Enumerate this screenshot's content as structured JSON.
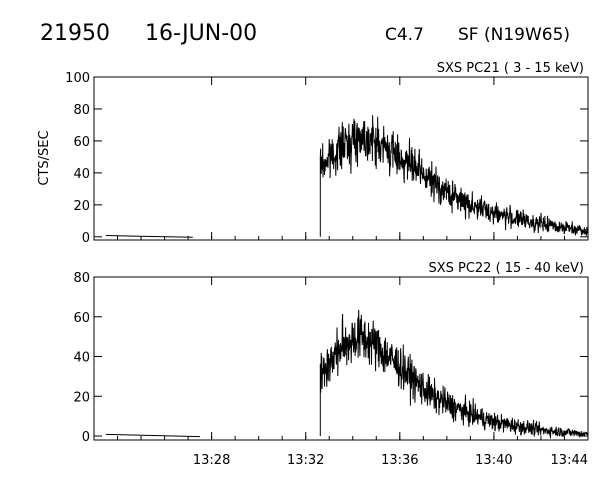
{
  "header": {
    "event_id": "21950",
    "date": "16-JUN-00",
    "goes_class": "C4.7",
    "flare": "SF (N19W65)"
  },
  "colors": {
    "trace": "#000000",
    "axes": "#000000",
    "background": "#ffffff"
  },
  "chart_data": [
    {
      "type": "line",
      "title": "SXS PC21  (  3 - 15 keV)",
      "ylabel": "CTS/SEC",
      "xlabel": "",
      "xlim": [
        "13:23",
        "13:44"
      ],
      "ylim": [
        -2,
        100
      ],
      "yticks": [
        0,
        20,
        40,
        60,
        80,
        100
      ],
      "xticks": [
        "13:28",
        "13:32",
        "13:36",
        "13:40",
        "13:44"
      ],
      "grid": false,
      "series": [
        {
          "x": [
            "13:23.5",
            "13:25.0",
            "13:27.2",
            "13:32.60",
            "13:32.62",
            "13:32.8",
            "13:33.2",
            "13:33.6",
            "13:34.0",
            "13:34.4",
            "13:34.8",
            "13:35.3",
            "13:36.0",
            "13:36.7",
            "13:37.4",
            "13:38.2",
            "13:39.0",
            "13:40.0",
            "13:41.0",
            "13:42.0",
            "13:43.0",
            "13:44.0"
          ],
          "y": [
            0,
            0,
            0,
            0,
            45,
            46,
            52,
            57,
            61,
            63,
            61,
            56,
            50,
            42,
            34,
            26,
            20,
            15,
            11,
            8,
            6,
            4
          ]
        }
      ]
    },
    {
      "type": "line",
      "title": "SXS PC22  ( 15 - 40 keV)",
      "ylabel": "",
      "xlabel": "",
      "xlim": [
        "13:23",
        "13:44"
      ],
      "ylim": [
        -2,
        80
      ],
      "yticks": [
        0,
        20,
        40,
        60,
        80
      ],
      "xticks": [
        "13:28",
        "13:32",
        "13:36",
        "13:40",
        "13:44"
      ],
      "grid": false,
      "series": [
        {
          "x": [
            "13:23.5",
            "13:25.0",
            "13:27.5",
            "13:32.60",
            "13:32.62",
            "13:32.8",
            "13:33.2",
            "13:33.6",
            "13:34.0",
            "13:34.4",
            "13:34.8",
            "13:35.3",
            "13:36.0",
            "13:36.7",
            "13:37.4",
            "13:38.2",
            "13:39.0",
            "13:40.0",
            "13:41.0",
            "13:42.0",
            "13:43.0",
            "13:44.0"
          ],
          "y": [
            0,
            0,
            0,
            0,
            30,
            34,
            40,
            46,
            49,
            50,
            47,
            42,
            35,
            27,
            20,
            15,
            11,
            7,
            5,
            3,
            2,
            1
          ]
        }
      ]
    }
  ]
}
